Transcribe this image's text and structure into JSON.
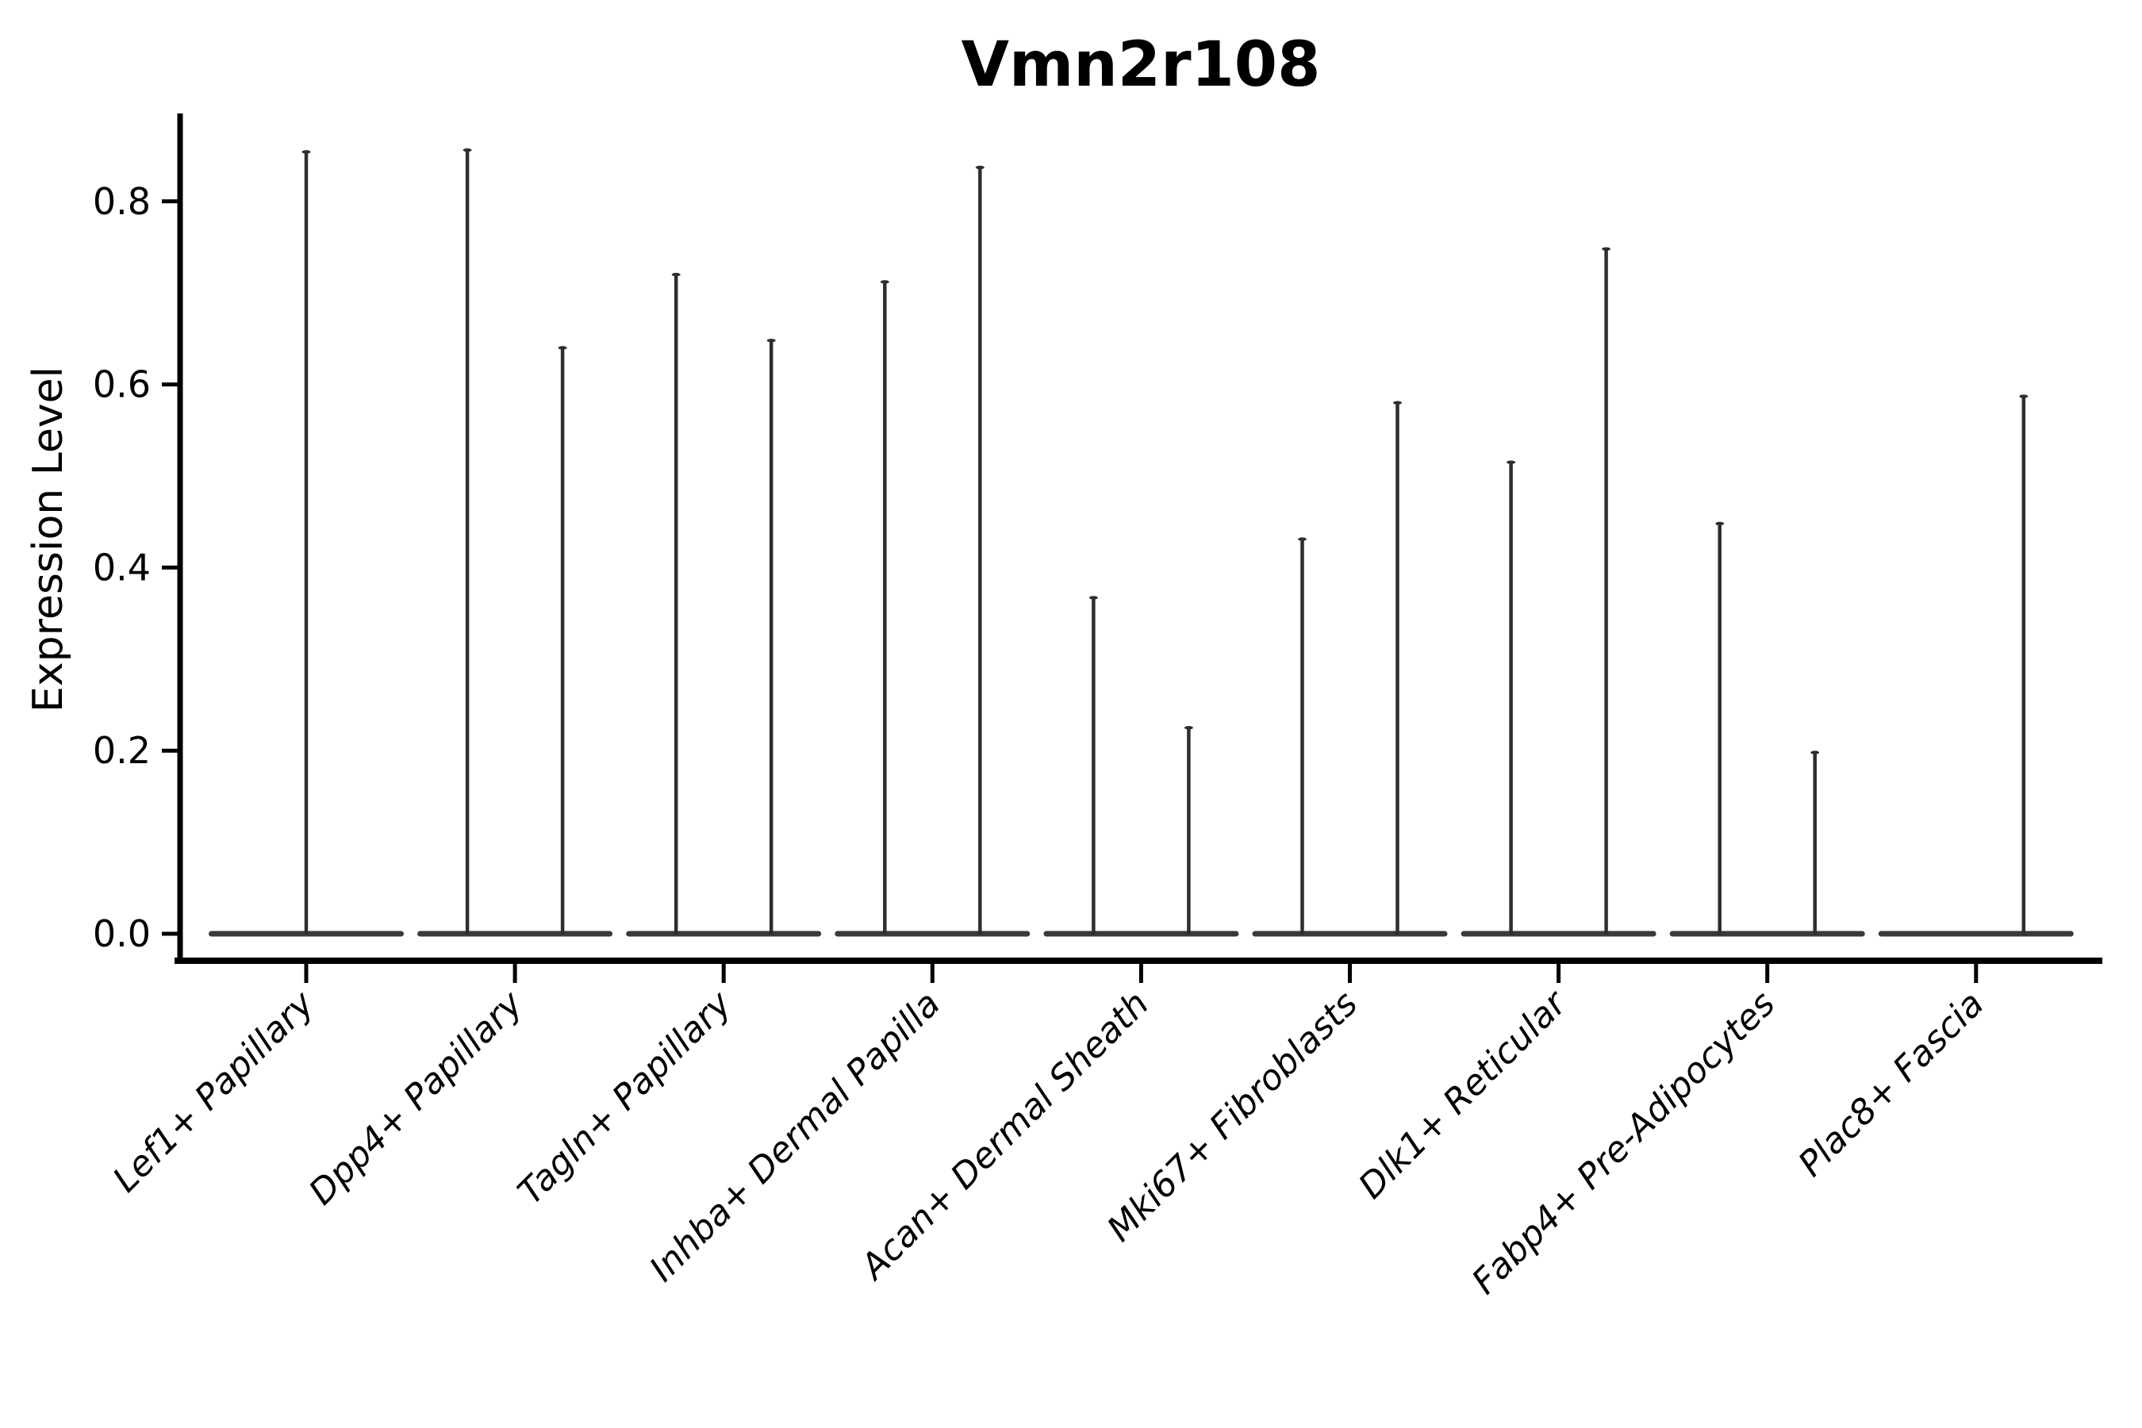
{
  "figure": {
    "background": "#ffffff",
    "axis_color": "#000000",
    "violin_color": "#2e2e2e",
    "baseline_color": "#3a3a3a"
  },
  "chart_data": {
    "type": "violin",
    "title": "Vmn2r108",
    "xlabel": "",
    "ylabel": "Expression Level",
    "ylim": [
      0,
      0.9
    ],
    "yticks": [
      0,
      0.2,
      0.4,
      0.6,
      0.8
    ],
    "ytick_labels": [
      "0.0",
      "0.2",
      "0.4",
      "0.6",
      "0.8"
    ],
    "grid": false,
    "legend": null,
    "note": "Violins are collapsed to a flat bar at 0 expression with a thin spike up to the maximum; most categories contain two side-by-side sub-violins.",
    "categories": [
      {
        "label": "Lef1+ Papillary",
        "violins": [
          {
            "position": "center",
            "max": 0.854
          }
        ]
      },
      {
        "label": "Dpp4+ Papillary",
        "violins": [
          {
            "position": "left",
            "max": 0.856
          },
          {
            "position": "right",
            "max": 0.64
          }
        ]
      },
      {
        "label": "Tagln+ Papillary",
        "violins": [
          {
            "position": "left",
            "max": 0.72
          },
          {
            "position": "right",
            "max": 0.648
          }
        ]
      },
      {
        "label": "Inhba+ Dermal Papilla",
        "violins": [
          {
            "position": "left",
            "max": 0.712
          },
          {
            "position": "right",
            "max": 0.837
          }
        ]
      },
      {
        "label": "Acan+ Dermal Sheath",
        "violins": [
          {
            "position": "left",
            "max": 0.367
          },
          {
            "position": "right",
            "max": 0.225
          }
        ]
      },
      {
        "label": "Mki67+ Fibroblasts",
        "violins": [
          {
            "position": "left",
            "max": 0.431
          },
          {
            "position": "right",
            "max": 0.58
          }
        ]
      },
      {
        "label": "Dlk1+ Reticular",
        "violins": [
          {
            "position": "left",
            "max": 0.515
          },
          {
            "position": "right",
            "max": 0.748
          }
        ]
      },
      {
        "label": "Fabp4+ Pre-Adipocytes",
        "violins": [
          {
            "position": "left",
            "max": 0.448
          },
          {
            "position": "right",
            "max": 0.198
          }
        ]
      },
      {
        "label": "Plac8+ Fascia",
        "violins": [
          {
            "position": "left",
            "max": 0.0
          },
          {
            "position": "right",
            "max": 0.587
          }
        ]
      }
    ]
  }
}
